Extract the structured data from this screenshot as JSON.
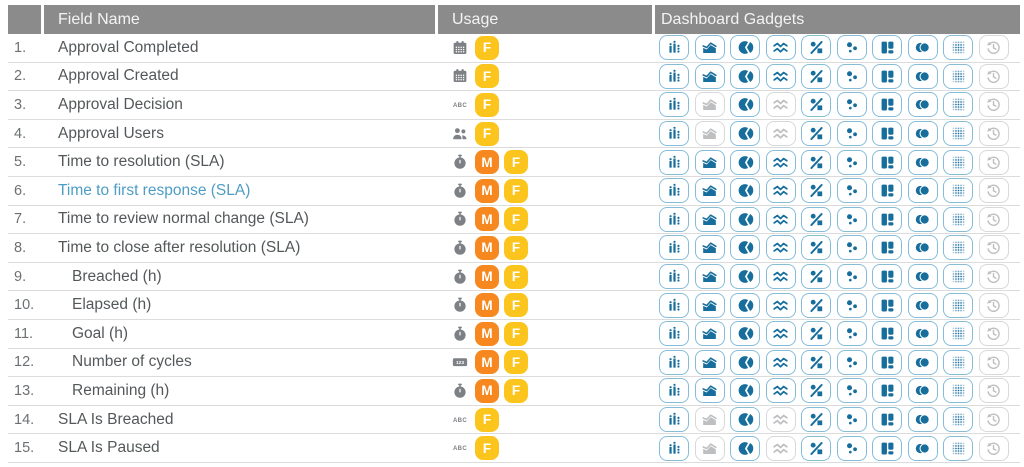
{
  "header": {
    "field_name": "Field Name",
    "usage": "Usage",
    "dashboard_gadgets": "Dashboard Gadgets"
  },
  "gadget_icons": [
    {
      "name": "bar-chart-icon",
      "symbol": "g-bar"
    },
    {
      "name": "area-chart-icon",
      "symbol": "g-area"
    },
    {
      "name": "pie-chart-icon",
      "symbol": "g-pie"
    },
    {
      "name": "line-chart-icon",
      "symbol": "g-lines"
    },
    {
      "name": "percentage-icon",
      "symbol": "g-percent"
    },
    {
      "name": "scatter-chart-icon",
      "symbol": "g-scatter"
    },
    {
      "name": "layout-tiles-icon",
      "symbol": "g-layout"
    },
    {
      "name": "venn-circles-icon",
      "symbol": "g-venn"
    },
    {
      "name": "dot-grid-icon",
      "symbol": "g-grid"
    },
    {
      "name": "history-icon",
      "symbol": "g-history"
    }
  ],
  "usage_icons": {
    "calendar": {
      "name": "calendar-icon",
      "symbol": "u-calendar"
    },
    "text": {
      "name": "text-abc-icon",
      "symbol": "u-abc"
    },
    "people": {
      "name": "people-icon",
      "symbol": "u-people"
    },
    "stopwatch": {
      "name": "stopwatch-icon",
      "symbol": "u-stopwatch"
    },
    "number": {
      "name": "number-123-icon",
      "symbol": "u-123"
    }
  },
  "badges": {
    "M": {
      "label": "M",
      "color": "#f6881f"
    },
    "F": {
      "label": "F",
      "color": "#fbc51d"
    }
  },
  "rows": [
    {
      "num": "1.",
      "name": "Approval Completed",
      "style": "normal",
      "indent": false,
      "usage_icon": "calendar",
      "badges": [
        "F"
      ],
      "gadgets": [
        1,
        1,
        1,
        1,
        1,
        1,
        1,
        1,
        1,
        0
      ]
    },
    {
      "num": "2.",
      "name": "Approval Created",
      "style": "normal",
      "indent": false,
      "usage_icon": "calendar",
      "badges": [
        "F"
      ],
      "gadgets": [
        1,
        1,
        1,
        1,
        1,
        1,
        1,
        1,
        1,
        0
      ]
    },
    {
      "num": "3.",
      "name": "Approval Decision",
      "style": "normal",
      "indent": false,
      "usage_icon": "text",
      "badges": [
        "F"
      ],
      "gadgets": [
        1,
        0,
        1,
        0,
        1,
        1,
        1,
        1,
        1,
        0
      ]
    },
    {
      "num": "4.",
      "name": "Approval Users",
      "style": "normal",
      "indent": false,
      "usage_icon": "people",
      "badges": [
        "F"
      ],
      "gadgets": [
        1,
        0,
        1,
        0,
        1,
        1,
        1,
        1,
        1,
        0
      ]
    },
    {
      "num": "5.",
      "name": "Time to resolution (SLA)",
      "style": "normal",
      "indent": false,
      "usage_icon": "stopwatch",
      "badges": [
        "M",
        "F"
      ],
      "gadgets": [
        1,
        1,
        1,
        1,
        1,
        1,
        1,
        1,
        1,
        0
      ]
    },
    {
      "num": "6.",
      "name": "Time to first response (SLA)",
      "style": "link",
      "indent": false,
      "usage_icon": "stopwatch",
      "badges": [
        "M",
        "F"
      ],
      "gadgets": [
        1,
        1,
        1,
        1,
        1,
        1,
        1,
        1,
        1,
        0
      ]
    },
    {
      "num": "7.",
      "name": "Time to review normal change (SLA)",
      "style": "normal",
      "indent": false,
      "usage_icon": "stopwatch",
      "badges": [
        "M",
        "F"
      ],
      "gadgets": [
        1,
        1,
        1,
        1,
        1,
        1,
        1,
        1,
        1,
        0
      ]
    },
    {
      "num": "8.",
      "name": "Time to close after resolution (SLA)",
      "style": "normal",
      "indent": false,
      "usage_icon": "stopwatch",
      "badges": [
        "M",
        "F"
      ],
      "gadgets": [
        1,
        1,
        1,
        1,
        1,
        1,
        1,
        1,
        1,
        0
      ]
    },
    {
      "num": "9.",
      "name": "Breached (h)",
      "style": "normal",
      "indent": true,
      "usage_icon": "stopwatch",
      "badges": [
        "M",
        "F"
      ],
      "gadgets": [
        1,
        1,
        1,
        1,
        1,
        1,
        1,
        1,
        1,
        0
      ]
    },
    {
      "num": "10.",
      "name": "Elapsed (h)",
      "style": "normal",
      "indent": true,
      "usage_icon": "stopwatch",
      "badges": [
        "M",
        "F"
      ],
      "gadgets": [
        1,
        1,
        1,
        1,
        1,
        1,
        1,
        1,
        1,
        0
      ]
    },
    {
      "num": "11.",
      "name": "Goal (h)",
      "style": "normal",
      "indent": true,
      "usage_icon": "stopwatch",
      "badges": [
        "M",
        "F"
      ],
      "gadgets": [
        1,
        1,
        1,
        1,
        1,
        1,
        1,
        1,
        1,
        0
      ]
    },
    {
      "num": "12.",
      "name": "Number of cycles",
      "style": "normal",
      "indent": true,
      "usage_icon": "number",
      "badges": [
        "M",
        "F"
      ],
      "gadgets": [
        1,
        1,
        1,
        1,
        1,
        1,
        1,
        1,
        1,
        0
      ]
    },
    {
      "num": "13.",
      "name": "Remaining (h)",
      "style": "normal",
      "indent": true,
      "usage_icon": "stopwatch",
      "badges": [
        "M",
        "F"
      ],
      "gadgets": [
        1,
        1,
        1,
        1,
        1,
        1,
        1,
        1,
        1,
        0
      ]
    },
    {
      "num": "14.",
      "name": "SLA Is Breached",
      "style": "normal",
      "indent": false,
      "usage_icon": "text",
      "badges": [
        "F"
      ],
      "gadgets": [
        1,
        0,
        1,
        0,
        1,
        1,
        1,
        1,
        1,
        0
      ]
    },
    {
      "num": "15.",
      "name": "SLA Is Paused",
      "style": "normal",
      "indent": false,
      "usage_icon": "text",
      "badges": [
        "F"
      ],
      "gadgets": [
        1,
        0,
        1,
        0,
        1,
        1,
        1,
        1,
        1,
        0
      ]
    }
  ],
  "colors": {
    "header_bg": "#8b8b8b",
    "header_text": "#f4f4f4",
    "row_text": "#54585a",
    "row_number": "#6d7073",
    "link_blue": "#4d9dc4",
    "gadget_blue": "#176e9c",
    "gadget_border": "#85bcd8",
    "disabled_gray": "#bdbfc1",
    "disabled_border": "#d7d8d9",
    "divider": "#dcdcdc",
    "usage_icon_gray": "#7d8084"
  }
}
